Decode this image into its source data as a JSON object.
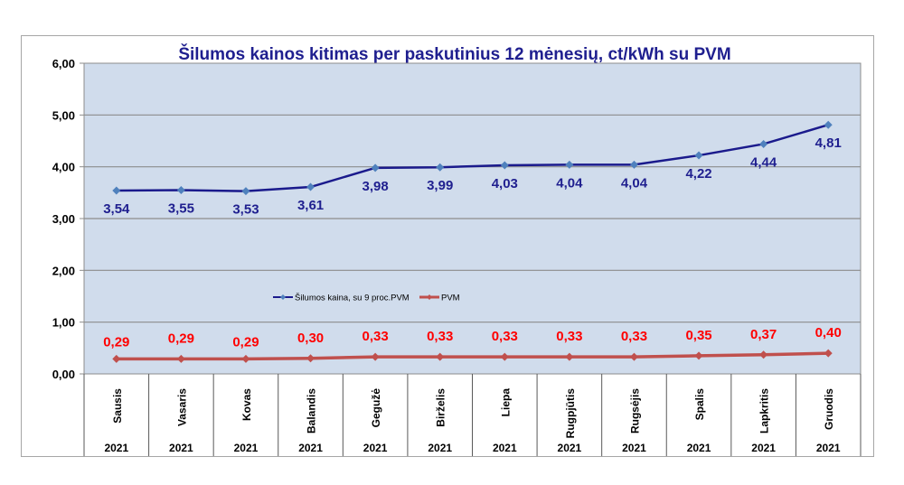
{
  "chart_data": {
    "type": "line",
    "title": "Šilumos kainos kitimas per paskutinius 12 mėnesių, ct/kWh su PVM",
    "xlabel": "",
    "ylabel": "",
    "ylim": [
      0,
      6
    ],
    "yticks": [
      "0,00",
      "1,00",
      "2,00",
      "3,00",
      "4,00",
      "5,00",
      "6,00"
    ],
    "grid": true,
    "legend_position": "center",
    "categories": [
      "Sausis",
      "Vasaris",
      "Kovas",
      "Balandis",
      "Gegužė",
      "Birželis",
      "Liepa",
      "Rugpjūtis",
      "Rugsėjis",
      "Spalis",
      "Lapkritis",
      "Gruodis"
    ],
    "years": [
      "2021",
      "2021",
      "2021",
      "2021",
      "2021",
      "2021",
      "2021",
      "2021",
      "2021",
      "2021",
      "2021",
      "2021"
    ],
    "series": [
      {
        "name": "Šilumos kaina, su 9 proc.PVM",
        "color": "#1a1a8c",
        "marker_color": "#4f81bd",
        "values": [
          3.54,
          3.55,
          3.53,
          3.61,
          3.98,
          3.99,
          4.03,
          4.04,
          4.04,
          4.22,
          4.44,
          4.81
        ],
        "labels": [
          "3,54",
          "3,55",
          "3,53",
          "3,61",
          "3,98",
          "3,99",
          "4,03",
          "4,04",
          "4,04",
          "4,22",
          "4,44",
          "4,81"
        ]
      },
      {
        "name": "PVM",
        "color": "#c0504d",
        "label_color": "#ff0000",
        "values": [
          0.29,
          0.29,
          0.29,
          0.3,
          0.33,
          0.33,
          0.33,
          0.33,
          0.33,
          0.35,
          0.37,
          0.4
        ],
        "labels": [
          "0,29",
          "0,29",
          "0,29",
          "0,30",
          "0,33",
          "0,33",
          "0,33",
          "0,33",
          "0,33",
          "0,35",
          "0,37",
          "0,40"
        ]
      }
    ]
  }
}
